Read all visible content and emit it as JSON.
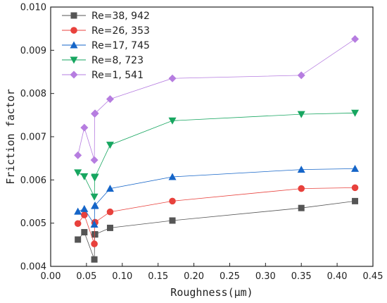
{
  "chart_data": {
    "type": "line",
    "xlabel": "Roughness(μm)",
    "ylabel": "Friction factor",
    "xlim": [
      0.0,
      0.45
    ],
    "ylim": [
      0.004,
      0.01
    ],
    "xticks": [
      "0.00",
      "0.05",
      "0.10",
      "0.15",
      "0.20",
      "0.25",
      "0.30",
      "0.35",
      "0.40",
      "0.45"
    ],
    "yticks": [
      "0.004",
      "0.005",
      "0.006",
      "0.007",
      "0.008",
      "0.009",
      "0.010"
    ],
    "grid": false,
    "legend_position": "top-left",
    "x": [
      0.038,
      0.047,
      0.061,
      0.0615,
      0.062,
      0.083,
      0.17,
      0.35,
      0.425
    ],
    "series": [
      {
        "name": "Re=38, 942",
        "color": "#555555",
        "marker": "square",
        "values": [
          0.00462,
          0.00479,
          0.00416,
          0.00474,
          0.00474,
          0.00489,
          0.00506,
          0.00535,
          0.00551
        ]
      },
      {
        "name": "Re=26, 353",
        "color": "#e8413c",
        "marker": "circle",
        "values": [
          0.00499,
          0.00519,
          0.00452,
          0.00501,
          0.00502,
          0.00526,
          0.00551,
          0.0058,
          0.00582
        ]
      },
      {
        "name": "Re=17, 745",
        "color": "#1565c8",
        "marker": "triangle-up",
        "values": [
          0.00527,
          0.00533,
          0.00497,
          0.0054,
          0.00541,
          0.0058,
          0.00607,
          0.00624,
          0.00626
        ]
      },
      {
        "name": "Re=8, 723",
        "color": "#17a660",
        "marker": "triangle-down",
        "values": [
          0.00617,
          0.00608,
          0.00561,
          0.00605,
          0.00607,
          0.00681,
          0.00737,
          0.00752,
          0.00755
        ]
      },
      {
        "name": "Re=1, 541",
        "color": "#b67de0",
        "marker": "diamond",
        "values": [
          0.00657,
          0.00721,
          0.00646,
          0.00753,
          0.00754,
          0.00787,
          0.00835,
          0.00842,
          0.00926
        ]
      }
    ]
  }
}
